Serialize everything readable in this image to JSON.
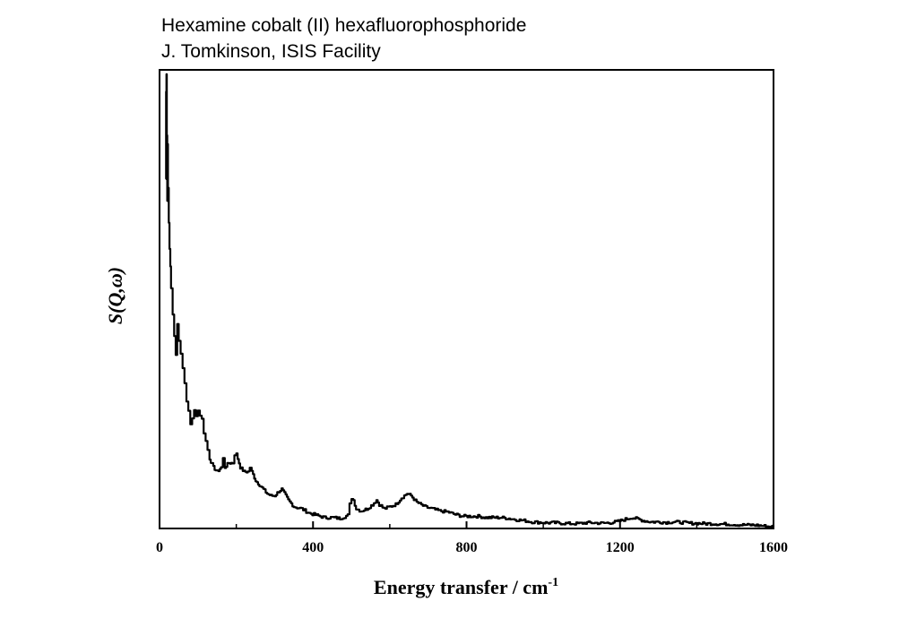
{
  "chart_data": {
    "type": "line",
    "title": "Hexamine cobalt (II) hexafluorophosphoride",
    "subtitle": "J. Tomkinson, ISIS Facility",
    "xlabel": "Energy transfer / cm",
    "xlabel_superscript": "-1",
    "ylabel": "S(Q,ω)",
    "xlim": [
      0,
      1600
    ],
    "ylim": [
      0,
      105
    ],
    "x_ticks": [
      0,
      400,
      800,
      1200,
      1600
    ],
    "x_tick_labels": [
      "0",
      "400",
      "800",
      "1200",
      "1600"
    ],
    "y_ticks_labeled": false,
    "grid": false,
    "series": [
      {
        "values": [
          [
            16,
            80
          ],
          [
            17,
            100
          ],
          [
            18,
            104
          ],
          [
            19,
            90
          ],
          [
            20,
            75
          ],
          [
            21,
            88
          ],
          [
            22,
            78
          ],
          [
            24,
            70
          ],
          [
            26,
            64
          ],
          [
            28,
            60
          ],
          [
            30,
            55
          ],
          [
            34,
            49
          ],
          [
            38,
            44
          ],
          [
            42,
            40
          ],
          [
            46,
            47
          ],
          [
            50,
            43
          ],
          [
            55,
            40
          ],
          [
            60,
            37
          ],
          [
            65,
            33
          ],
          [
            70,
            29
          ],
          [
            75,
            27
          ],
          [
            80,
            24
          ],
          [
            85,
            25
          ],
          [
            90,
            27
          ],
          [
            95,
            26
          ],
          [
            100,
            27
          ],
          [
            105,
            26
          ],
          [
            110,
            25
          ],
          [
            115,
            22
          ],
          [
            120,
            20
          ],
          [
            125,
            18
          ],
          [
            130,
            16
          ],
          [
            140,
            14
          ],
          [
            150,
            13
          ],
          [
            160,
            14
          ],
          [
            165,
            16
          ],
          [
            170,
            14
          ],
          [
            180,
            15
          ],
          [
            190,
            15
          ],
          [
            195,
            17
          ],
          [
            200,
            17
          ],
          [
            210,
            14
          ],
          [
            220,
            13
          ],
          [
            230,
            13
          ],
          [
            235,
            14
          ],
          [
            240,
            13
          ],
          [
            250,
            11
          ],
          [
            260,
            10
          ],
          [
            270,
            9
          ],
          [
            280,
            8
          ],
          [
            290,
            7.5
          ],
          [
            300,
            7.5
          ],
          [
            310,
            8.5
          ],
          [
            318,
            9
          ],
          [
            325,
            8
          ],
          [
            335,
            6.5
          ],
          [
            350,
            5
          ],
          [
            370,
            4.5
          ],
          [
            390,
            3.5
          ],
          [
            410,
            3
          ],
          [
            430,
            2.5
          ],
          [
            450,
            2.5
          ],
          [
            470,
            2.3
          ],
          [
            490,
            3
          ],
          [
            495,
            5.5
          ],
          [
            500,
            7
          ],
          [
            505,
            6.5
          ],
          [
            512,
            4.5
          ],
          [
            525,
            4
          ],
          [
            540,
            4.5
          ],
          [
            555,
            5.5
          ],
          [
            565,
            6.5
          ],
          [
            572,
            5.5
          ],
          [
            585,
            4.5
          ],
          [
            600,
            5
          ],
          [
            615,
            5.5
          ],
          [
            630,
            7
          ],
          [
            645,
            8
          ],
          [
            655,
            7.5
          ],
          [
            670,
            6
          ],
          [
            690,
            5
          ],
          [
            710,
            4.5
          ],
          [
            730,
            4
          ],
          [
            750,
            3.8
          ],
          [
            770,
            3.2
          ],
          [
            790,
            2.8
          ],
          [
            810,
            2.8
          ],
          [
            830,
            2.8
          ],
          [
            850,
            2.5
          ],
          [
            870,
            2.5
          ],
          [
            890,
            2.5
          ],
          [
            910,
            2.3
          ],
          [
            930,
            2
          ],
          [
            950,
            1.8
          ],
          [
            970,
            1.5
          ],
          [
            990,
            1.4
          ],
          [
            1010,
            1.3
          ],
          [
            1030,
            1.3
          ],
          [
            1050,
            1.2
          ],
          [
            1070,
            1.1
          ],
          [
            1090,
            1.1
          ],
          [
            1110,
            1.3
          ],
          [
            1130,
            1.3
          ],
          [
            1150,
            1.2
          ],
          [
            1170,
            1.3
          ],
          [
            1190,
            1.5
          ],
          [
            1210,
            2
          ],
          [
            1230,
            2.5
          ],
          [
            1245,
            2.2
          ],
          [
            1260,
            1.8
          ],
          [
            1280,
            1.5
          ],
          [
            1300,
            1.5
          ],
          [
            1320,
            1.4
          ],
          [
            1340,
            1.5
          ],
          [
            1360,
            1.4
          ],
          [
            1380,
            1.2
          ],
          [
            1400,
            1.2
          ],
          [
            1420,
            1.1
          ],
          [
            1440,
            1.1
          ],
          [
            1460,
            1
          ],
          [
            1480,
            1
          ],
          [
            1500,
            0.9
          ],
          [
            1520,
            0.8
          ],
          [
            1540,
            0.8
          ],
          [
            1560,
            0.7
          ],
          [
            1580,
            0.5
          ],
          [
            1600,
            0.4
          ]
        ]
      }
    ]
  }
}
